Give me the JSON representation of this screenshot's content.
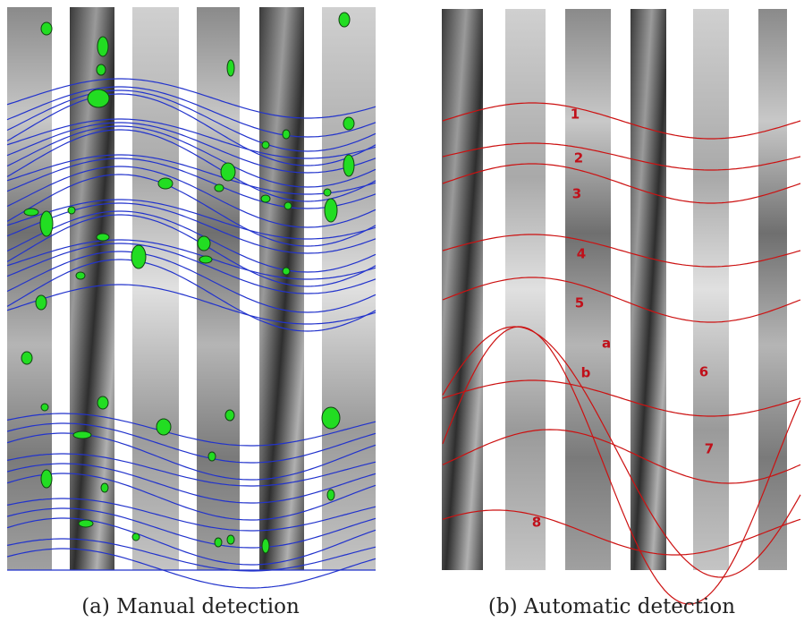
{
  "panels": [
    {
      "caption": "(a) Manual detection"
    },
    {
      "caption": "(b) Automatic detection",
      "labels": [
        "1",
        "2",
        "3",
        "4",
        "5",
        "a",
        "b",
        "6",
        "7",
        "8"
      ]
    }
  ]
}
